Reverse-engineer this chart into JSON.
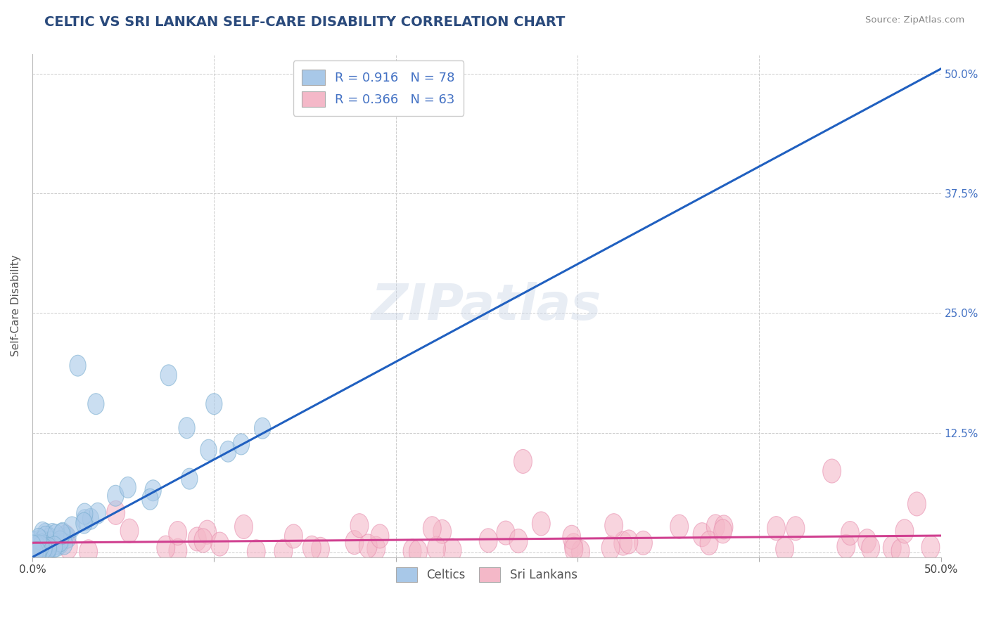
{
  "title": "CELTIC VS SRI LANKAN SELF-CARE DISABILITY CORRELATION CHART",
  "source": "Source: ZipAtlas.com",
  "ylabel": "Self-Care Disability",
  "xlim": [
    0.0,
    0.5
  ],
  "ylim": [
    -0.005,
    0.52
  ],
  "blue_R": 0.916,
  "blue_N": 78,
  "pink_R": 0.366,
  "pink_N": 63,
  "blue_color": "#a8c8e8",
  "pink_color": "#f4b8c8",
  "blue_edge_color": "#7aaed0",
  "pink_edge_color": "#e890b0",
  "blue_line_color": "#2060c0",
  "pink_line_color": "#d04090",
  "legend_label_blue": "Celtics",
  "legend_label_pink": "Sri Lankans",
  "title_color": "#2a4a7c",
  "source_color": "#888888",
  "watermark": "ZIPatlas",
  "background_color": "#ffffff",
  "grid_color": "#cccccc",
  "ytick_color": "#4472c4",
  "xtick_color": "#444444"
}
